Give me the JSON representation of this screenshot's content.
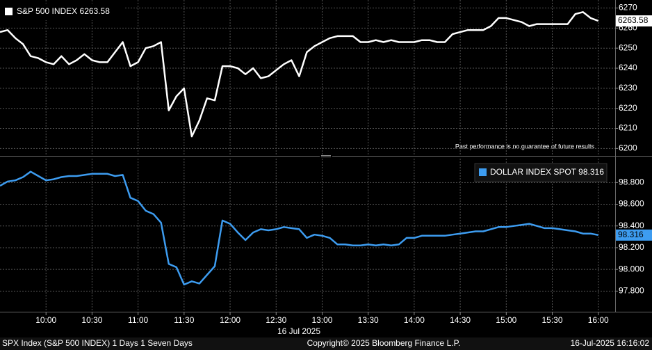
{
  "chart_data": [
    {
      "type": "line",
      "x": [
        "09:30",
        "09:35",
        "09:40",
        "09:45",
        "09:50",
        "09:55",
        "10:00",
        "10:05",
        "10:10",
        "10:15",
        "10:20",
        "10:25",
        "10:30",
        "10:35",
        "10:40",
        "10:45",
        "10:50",
        "10:55",
        "11:00",
        "11:05",
        "11:10",
        "11:15",
        "11:20",
        "11:25",
        "11:30",
        "11:35",
        "11:40",
        "11:45",
        "11:50",
        "11:55",
        "12:00",
        "12:05",
        "12:10",
        "12:15",
        "12:20",
        "12:25",
        "12:30",
        "12:35",
        "12:40",
        "12:45",
        "12:50",
        "12:55",
        "13:00",
        "13:05",
        "13:10",
        "13:15",
        "13:20",
        "13:25",
        "13:30",
        "13:35",
        "13:40",
        "13:45",
        "13:50",
        "13:55",
        "14:00",
        "14:05",
        "14:10",
        "14:15",
        "14:20",
        "14:25",
        "14:30",
        "14:35",
        "14:40",
        "14:45",
        "14:50",
        "14:55",
        "15:00",
        "15:05",
        "15:10",
        "15:15",
        "15:20",
        "15:25",
        "15:30",
        "15:35",
        "15:40",
        "15:45",
        "15:50",
        "15:55",
        "16:00"
      ],
      "xlim": [
        "09:30",
        "16:11"
      ],
      "series": [
        {
          "name": "S&P 500 INDEX",
          "color": "#ffffff",
          "values": [
            6258,
            6259,
            6255,
            6252,
            6246,
            6245,
            6243,
            6242,
            6246,
            6242,
            6244,
            6247,
            6244,
            6243,
            6243,
            6248,
            6253,
            6241,
            6243,
            6250,
            6251,
            6253,
            6219,
            6226,
            6230,
            6206,
            6214,
            6225,
            6224,
            6241,
            6241,
            6240,
            6237,
            6240,
            6235,
            6236,
            6239,
            6242,
            6244,
            6236,
            6248,
            6251,
            6253,
            6255,
            6256,
            6256,
            6256,
            6253,
            6253,
            6254,
            6253,
            6254,
            6253,
            6253,
            6253,
            6254,
            6254,
            6253,
            6253,
            6257,
            6258,
            6259,
            6259,
            6259,
            6261,
            6265,
            6265,
            6264,
            6263,
            6261,
            6262,
            6262,
            6262,
            6262,
            6262,
            6267,
            6268,
            6265,
            6263.58
          ]
        }
      ],
      "ylim": [
        6197,
        6274
      ],
      "yticks": [
        6200,
        6210,
        6220,
        6230,
        6240,
        6250,
        6260,
        6270
      ],
      "grid": true,
      "legend": "top-left",
      "annotation": "Past performance is no guarantee of future results"
    },
    {
      "type": "line",
      "x": [
        "09:30",
        "09:35",
        "09:40",
        "09:45",
        "09:50",
        "09:55",
        "10:00",
        "10:05",
        "10:10",
        "10:15",
        "10:20",
        "10:25",
        "10:30",
        "10:35",
        "10:40",
        "10:45",
        "10:50",
        "10:55",
        "11:00",
        "11:05",
        "11:10",
        "11:15",
        "11:20",
        "11:25",
        "11:30",
        "11:35",
        "11:40",
        "11:45",
        "11:50",
        "11:55",
        "12:00",
        "12:05",
        "12:10",
        "12:15",
        "12:20",
        "12:25",
        "12:30",
        "12:35",
        "12:40",
        "12:45",
        "12:50",
        "12:55",
        "13:00",
        "13:05",
        "13:10",
        "13:15",
        "13:20",
        "13:25",
        "13:30",
        "13:35",
        "13:40",
        "13:45",
        "13:50",
        "13:55",
        "14:00",
        "14:05",
        "14:10",
        "14:15",
        "14:20",
        "14:25",
        "14:30",
        "14:35",
        "14:40",
        "14:45",
        "14:50",
        "14:55",
        "15:00",
        "15:05",
        "15:10",
        "15:15",
        "15:20",
        "15:25",
        "15:30",
        "15:35",
        "15:40",
        "15:45",
        "15:50",
        "15:55",
        "16:00"
      ],
      "xlim": [
        "09:30",
        "16:11"
      ],
      "xticks": [
        "10:00",
        "10:30",
        "11:00",
        "11:30",
        "12:00",
        "12:30",
        "13:00",
        "13:30",
        "14:00",
        "14:30",
        "15:00",
        "15:30",
        "16:00"
      ],
      "date_label": "16 Jul 2025",
      "series": [
        {
          "name": "DOLLAR INDEX SPOT",
          "color": "#3d9cf0",
          "values": [
            98.77,
            98.81,
            98.82,
            98.85,
            98.9,
            98.86,
            98.82,
            98.83,
            98.85,
            98.86,
            98.86,
            98.87,
            98.88,
            98.88,
            98.88,
            98.86,
            98.87,
            98.66,
            98.63,
            98.54,
            98.51,
            98.43,
            98.05,
            98.02,
            97.86,
            97.89,
            97.87,
            97.95,
            98.03,
            98.45,
            98.42,
            98.34,
            98.27,
            98.34,
            98.37,
            98.36,
            98.37,
            98.39,
            98.38,
            98.37,
            98.29,
            98.32,
            98.31,
            98.29,
            98.23,
            98.23,
            98.22,
            98.22,
            98.23,
            98.22,
            98.23,
            98.22,
            98.23,
            98.29,
            98.29,
            98.31,
            98.31,
            98.31,
            98.31,
            98.32,
            98.33,
            98.34,
            98.35,
            98.35,
            98.37,
            98.39,
            98.39,
            98.4,
            98.41,
            98.42,
            98.4,
            98.38,
            98.38,
            98.37,
            98.36,
            98.35,
            98.33,
            98.33,
            98.316
          ]
        }
      ],
      "ylim": [
        97.61,
        99.02
      ],
      "yticks": [
        {
          "value": 97.8,
          "label": "97.800"
        },
        {
          "value": 98.0,
          "label": "98.000"
        },
        {
          "value": 98.2,
          "label": "98.200"
        },
        {
          "value": 98.4,
          "label": "98.400"
        },
        {
          "value": 98.6,
          "label": "98.600"
        },
        {
          "value": 98.8,
          "label": "98.800"
        }
      ],
      "grid": true,
      "legend": "top-right"
    }
  ],
  "footer": {
    "left": "SPX Index (S&P 500 INDEX) 1 Days 1 Seven Days",
    "center": "Copyright© 2025 Bloomberg Finance L.P.",
    "right": "16-Jul-2025 16:16:02"
  }
}
